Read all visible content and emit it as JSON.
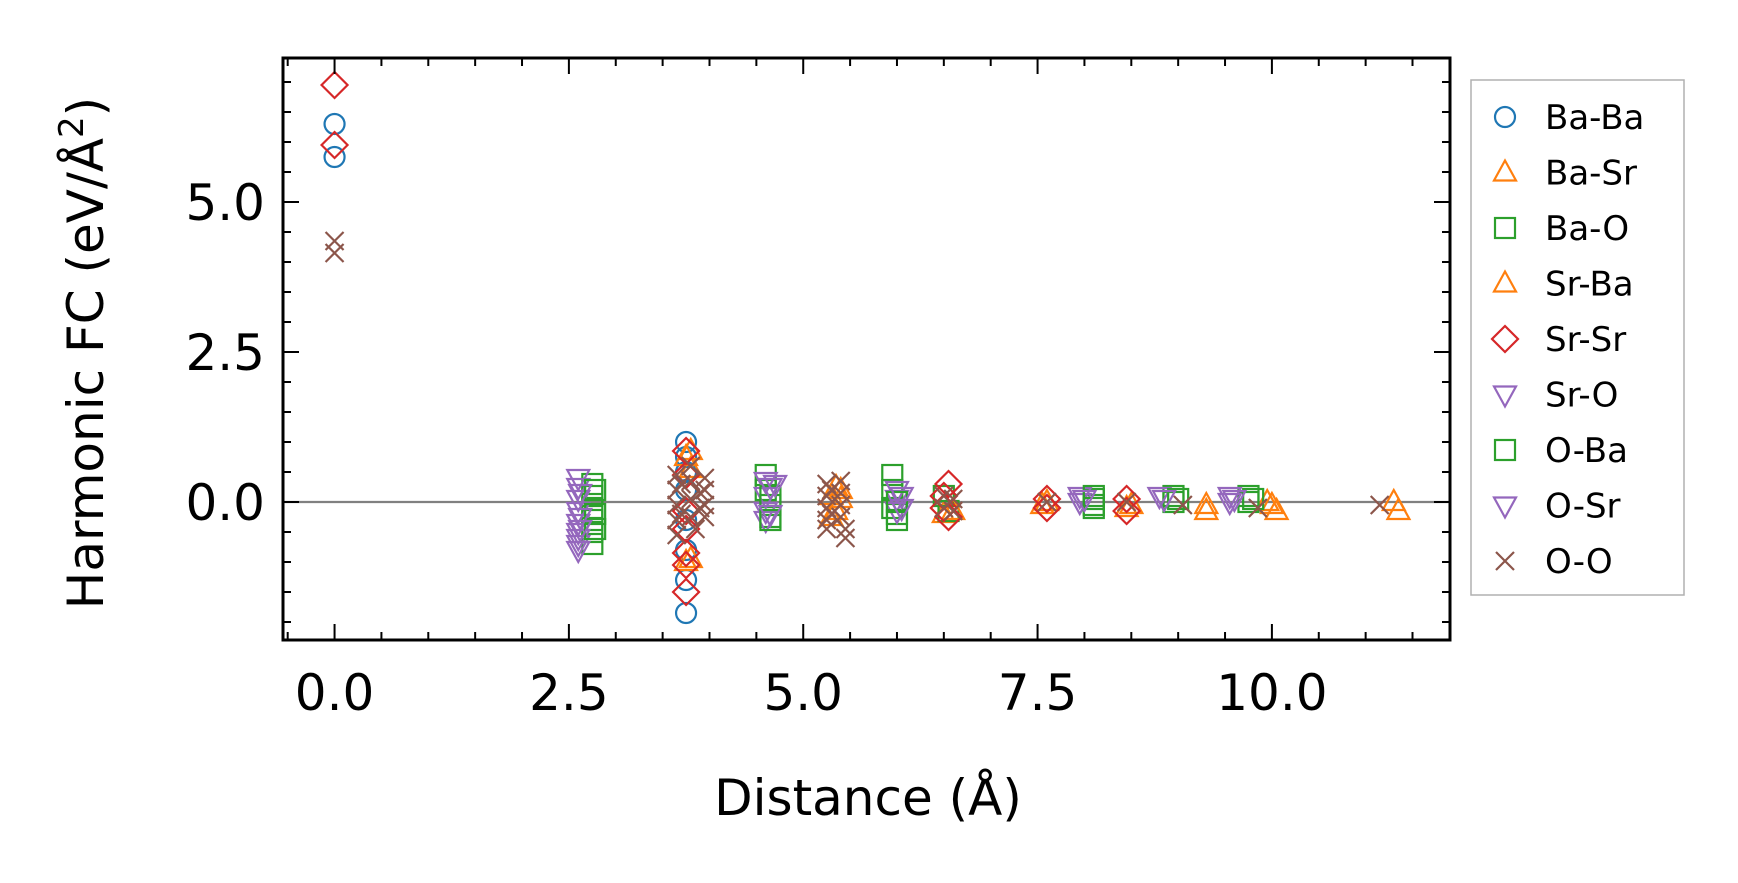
{
  "chart_data": {
    "type": "scatter",
    "title": "",
    "xlabel": "Distance (Å)",
    "ylabel_main": "Harmonic FC (eV/Å",
    "ylabel_sup": "2",
    "ylabel_close": ")",
    "xlim": [
      -0.55,
      11.9
    ],
    "ylim": [
      -2.3,
      7.4
    ],
    "xticks": [
      0.0,
      2.5,
      5.0,
      7.5,
      10.0
    ],
    "xtick_labels": [
      "0.0",
      "2.5",
      "5.0",
      "7.5",
      "10.0"
    ],
    "yticks": [
      0.0,
      2.5,
      5.0
    ],
    "ytick_labels": [
      "0.0",
      "2.5",
      "5.0"
    ],
    "reference_line_y": 0.0,
    "legend_position": "outside right",
    "series": [
      {
        "name": "Ba-Ba",
        "marker": "circle",
        "color": "#1f77b4",
        "points": [
          [
            0,
            6.3
          ],
          [
            0,
            5.75
          ],
          [
            3.75,
            1.0
          ],
          [
            3.75,
            0.75
          ],
          [
            3.75,
            0.5
          ],
          [
            3.75,
            -0.8
          ],
          [
            3.75,
            -1.3
          ],
          [
            3.75,
            -1.85
          ],
          [
            3.75,
            0.2
          ],
          [
            3.75,
            -0.3
          ]
        ]
      },
      {
        "name": "Ba-Sr",
        "marker": "triangle-up",
        "color": "#ff7f0e",
        "points": [
          [
            3.8,
            0.85
          ],
          [
            3.8,
            0.55
          ],
          [
            3.8,
            -0.95
          ],
          [
            5.35,
            0.25
          ],
          [
            5.35,
            -0.15
          ],
          [
            5.4,
            0.05
          ],
          [
            6.5,
            -0.2
          ],
          [
            7.6,
            0.0
          ],
          [
            8.45,
            -0.1
          ],
          [
            9.3,
            -0.15
          ],
          [
            9.95,
            0.0
          ],
          [
            10.05,
            -0.15
          ],
          [
            11.3,
            0.0
          ],
          [
            11.35,
            -0.15
          ]
        ]
      },
      {
        "name": "Ba-O",
        "marker": "square",
        "color": "#2ca02c",
        "points": [
          [
            2.75,
            0.3
          ],
          [
            2.75,
            0.1
          ],
          [
            2.75,
            -0.1
          ],
          [
            2.75,
            -0.3
          ],
          [
            2.75,
            -0.5
          ],
          [
            2.75,
            -0.7
          ],
          [
            4.6,
            0.45
          ],
          [
            4.6,
            0.2
          ],
          [
            4.65,
            -0.05
          ],
          [
            4.65,
            -0.25
          ],
          [
            5.95,
            0.45
          ],
          [
            5.95,
            0.2
          ],
          [
            5.95,
            -0.1
          ],
          [
            6.0,
            -0.2
          ],
          [
            6.5,
            0.1
          ],
          [
            6.55,
            -0.15
          ],
          [
            8.1,
            0.05
          ],
          [
            8.1,
            -0.05
          ],
          [
            8.95,
            0.1
          ],
          [
            8.95,
            0.0
          ],
          [
            9.75,
            0.1
          ],
          [
            9.75,
            0.0
          ]
        ]
      },
      {
        "name": "Sr-Ba",
        "marker": "triangle-up",
        "color": "#ff7f0e",
        "points": [
          [
            3.75,
            0.75
          ],
          [
            3.75,
            -1.0
          ],
          [
            5.3,
            0.1
          ],
          [
            5.3,
            -0.25
          ],
          [
            5.4,
            0.2
          ],
          [
            6.6,
            -0.15
          ],
          [
            7.55,
            -0.05
          ],
          [
            8.5,
            -0.05
          ],
          [
            9.3,
            -0.05
          ],
          [
            10.0,
            -0.05
          ]
        ]
      },
      {
        "name": "Sr-Sr",
        "marker": "diamond",
        "color": "#d62728",
        "points": [
          [
            0,
            6.95
          ],
          [
            0,
            5.95
          ],
          [
            3.75,
            0.85
          ],
          [
            3.75,
            0.45
          ],
          [
            3.75,
            -0.15
          ],
          [
            3.75,
            -0.45
          ],
          [
            3.75,
            -0.85
          ],
          [
            3.75,
            -1.05
          ],
          [
            3.75,
            -1.5
          ],
          [
            6.55,
            0.3
          ],
          [
            6.5,
            0.1
          ],
          [
            6.5,
            -0.1
          ],
          [
            6.55,
            -0.25
          ],
          [
            7.6,
            0.05
          ],
          [
            7.6,
            -0.1
          ],
          [
            8.45,
            0.05
          ],
          [
            8.45,
            -0.15
          ]
        ]
      },
      {
        "name": "Sr-O",
        "marker": "triangle-down",
        "color": "#9467bd",
        "points": [
          [
            2.6,
            0.4
          ],
          [
            2.6,
            0.25
          ],
          [
            2.6,
            0.05
          ],
          [
            2.6,
            -0.15
          ],
          [
            2.6,
            -0.35
          ],
          [
            2.6,
            -0.5
          ],
          [
            2.6,
            -0.6
          ],
          [
            2.6,
            -0.7
          ],
          [
            2.6,
            -0.8
          ],
          [
            4.6,
            0.35
          ],
          [
            4.6,
            0.1
          ],
          [
            4.6,
            -0.15
          ],
          [
            4.6,
            -0.3
          ],
          [
            6.0,
            0.2
          ],
          [
            6.0,
            0.05
          ],
          [
            6.0,
            -0.15
          ],
          [
            7.95,
            0.1
          ],
          [
            7.95,
            0.0
          ],
          [
            8.8,
            0.1
          ],
          [
            9.55,
            0.1
          ],
          [
            9.55,
            0.0
          ]
        ]
      },
      {
        "name": "O-Ba",
        "marker": "square",
        "color": "#2ca02c",
        "points": [
          [
            2.78,
            0.2
          ],
          [
            2.78,
            -0.2
          ],
          [
            2.78,
            -0.45
          ],
          [
            4.65,
            0.1
          ],
          [
            4.65,
            -0.3
          ],
          [
            6.0,
            0.0
          ],
          [
            6.0,
            -0.3
          ],
          [
            8.1,
            0.1
          ],
          [
            8.1,
            -0.1
          ],
          [
            9.0,
            0.05
          ],
          [
            9.8,
            0.05
          ]
        ]
      },
      {
        "name": "O-Sr",
        "marker": "triangle-down",
        "color": "#9467bd",
        "points": [
          [
            2.62,
            0.15
          ],
          [
            2.62,
            -0.25
          ],
          [
            2.62,
            -0.45
          ],
          [
            4.65,
            0.25
          ],
          [
            4.7,
            0.3
          ],
          [
            4.65,
            -0.2
          ],
          [
            6.05,
            0.1
          ],
          [
            6.05,
            -0.1
          ],
          [
            8.0,
            0.05
          ],
          [
            8.85,
            0.05
          ],
          [
            9.6,
            0.05
          ]
        ]
      },
      {
        "name": "O-O",
        "marker": "x",
        "color": "#8c564b",
        "points": [
          [
            0,
            4.35
          ],
          [
            0,
            4.15
          ],
          [
            3.65,
            0.45
          ],
          [
            3.65,
            0.2
          ],
          [
            3.65,
            -0.05
          ],
          [
            3.65,
            -0.3
          ],
          [
            3.65,
            -0.55
          ],
          [
            3.7,
            0.3
          ],
          [
            3.7,
            -0.2
          ],
          [
            3.8,
            0.6
          ],
          [
            3.8,
            0.35
          ],
          [
            3.8,
            0.05
          ],
          [
            3.8,
            -0.25
          ],
          [
            3.85,
            -0.45
          ],
          [
            3.9,
            0.15
          ],
          [
            3.9,
            -0.1
          ],
          [
            3.95,
            0.4
          ],
          [
            3.95,
            0.2
          ],
          [
            3.95,
            -0.05
          ],
          [
            3.95,
            -0.25
          ],
          [
            5.25,
            0.3
          ],
          [
            5.25,
            0.1
          ],
          [
            5.25,
            -0.1
          ],
          [
            5.25,
            -0.3
          ],
          [
            5.25,
            -0.45
          ],
          [
            5.3,
            0.2
          ],
          [
            5.3,
            -0.2
          ],
          [
            5.4,
            0.35
          ],
          [
            5.4,
            0.15
          ],
          [
            5.4,
            -0.05
          ],
          [
            5.4,
            -0.25
          ],
          [
            5.45,
            -0.45
          ],
          [
            5.45,
            -0.6
          ],
          [
            6.5,
            0.1
          ],
          [
            6.5,
            -0.1
          ],
          [
            6.6,
            0.05
          ],
          [
            6.6,
            -0.15
          ],
          [
            7.6,
            0.0
          ],
          [
            8.45,
            0.0
          ],
          [
            9.05,
            -0.05
          ],
          [
            9.85,
            -0.1
          ],
          [
            11.15,
            -0.05
          ]
        ]
      }
    ]
  }
}
